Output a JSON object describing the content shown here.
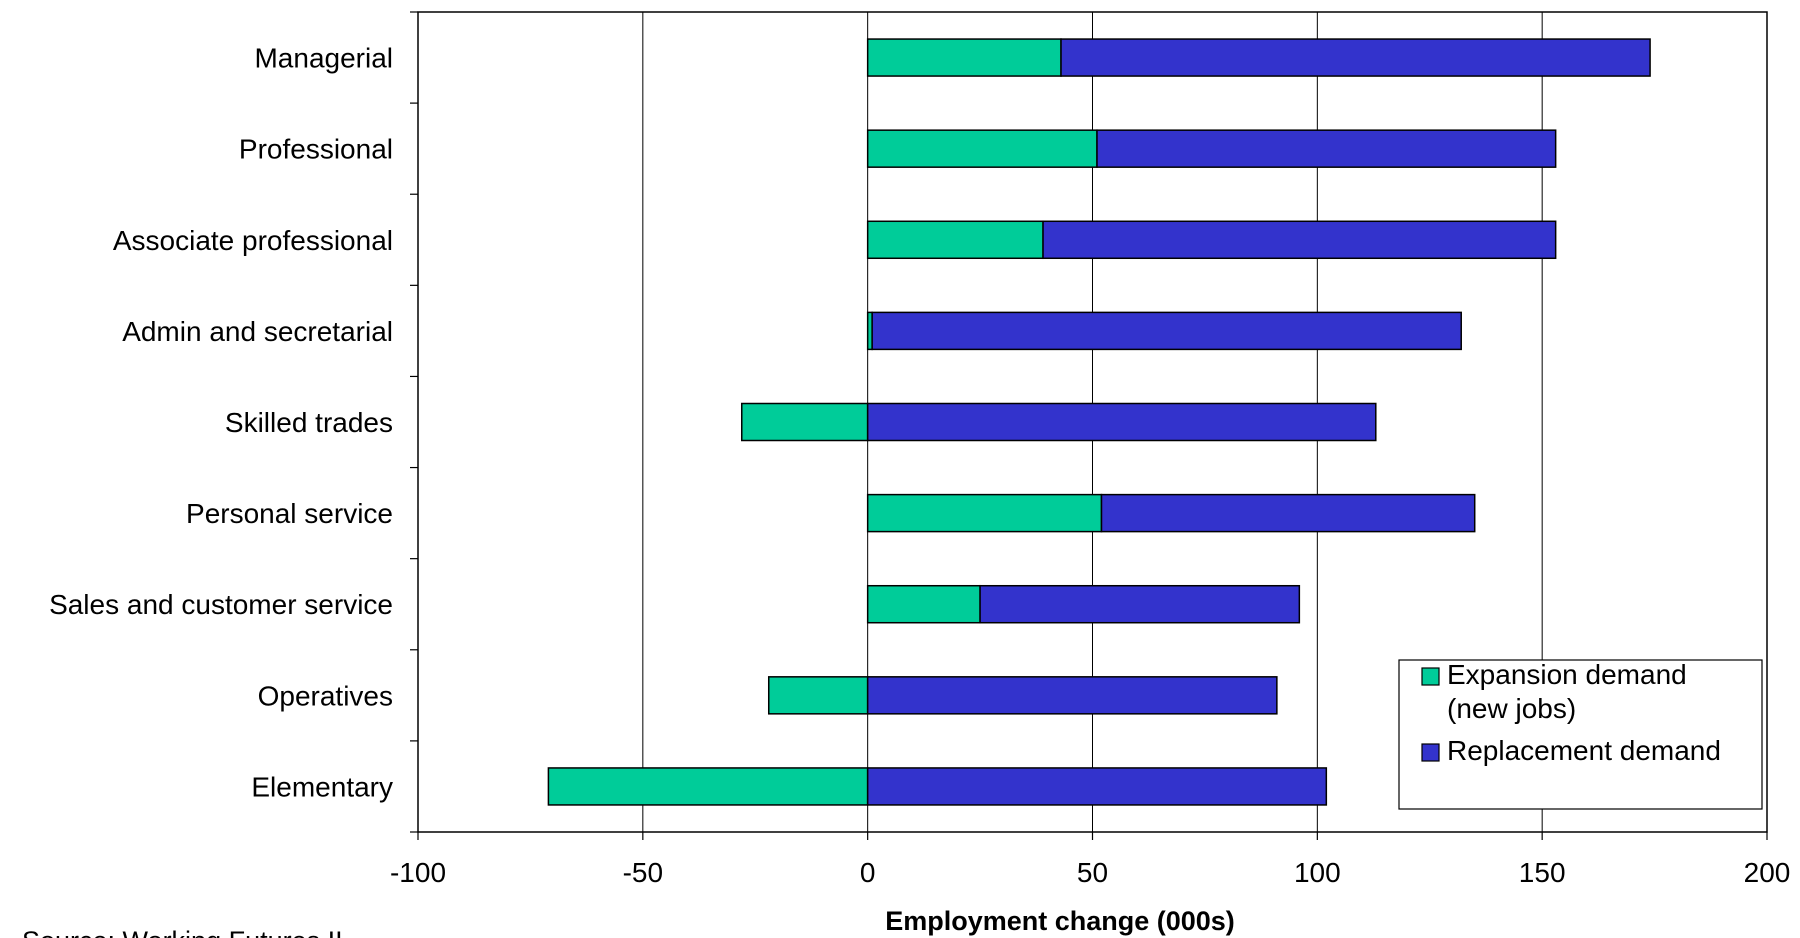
{
  "chart_data": {
    "type": "bar",
    "orientation": "horizontal",
    "stacked": true,
    "categories": [
      "Managerial",
      "Professional",
      "Associate professional",
      "Admin and secretarial",
      "Skilled trades",
      "Personal service",
      "Sales and customer service",
      "Operatives",
      "Elementary"
    ],
    "series": [
      {
        "name": "Expansion demand (new jobs)",
        "legend_lines": [
          "Expansion demand",
          "(new jobs)"
        ],
        "color": "#00CC99",
        "values": [
          43,
          51,
          39,
          1,
          -28,
          52,
          25,
          -22,
          -71
        ]
      },
      {
        "name": "Replacement demand",
        "legend_lines": [
          "Replacement demand"
        ],
        "color": "#3333CC",
        "values": [
          131,
          102,
          114,
          131,
          113,
          83,
          71,
          91,
          102
        ]
      }
    ],
    "xlabel": "Employment change (000s)",
    "xlim": [
      -100,
      200
    ],
    "xticks": [
      -100,
      -50,
      0,
      50,
      100,
      150,
      200
    ],
    "grid": "vertical",
    "legend_position": "bottom-right"
  },
  "source": "Source: Working Futures II"
}
